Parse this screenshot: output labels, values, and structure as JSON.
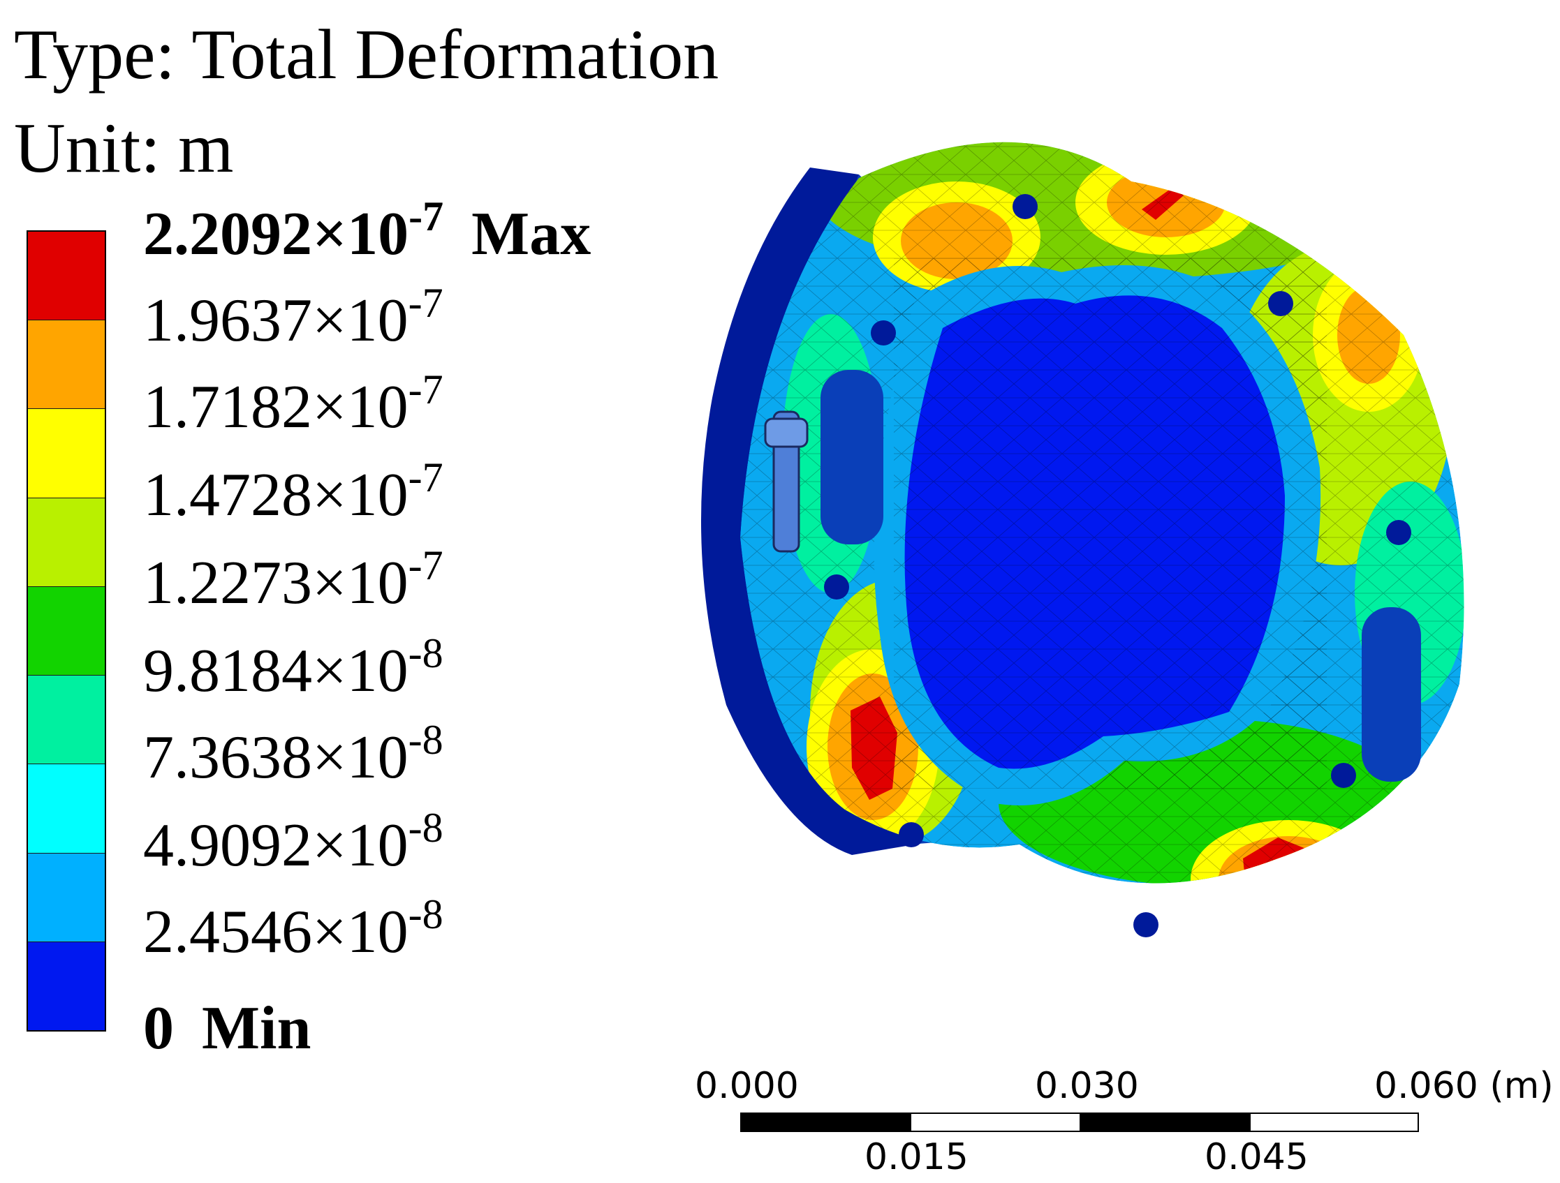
{
  "title": {
    "type_label": "Type: Total Deformation",
    "unit_label": "Unit: m"
  },
  "legend": {
    "colors": [
      "#e00000",
      "#ffa500",
      "#ffff00",
      "#b9f000",
      "#12d300",
      "#00f0a0",
      "#00ffff",
      "#00b0ff",
      "#0018f0"
    ],
    "levels": [
      {
        "mantissa": "2.2092",
        "times": "×10",
        "exponent": "-7",
        "tag": "Max"
      },
      {
        "mantissa": "1.9637",
        "times": "×10",
        "exponent": "-7",
        "tag": ""
      },
      {
        "mantissa": "1.7182",
        "times": "×10",
        "exponent": "-7",
        "tag": ""
      },
      {
        "mantissa": "1.4728",
        "times": "×10",
        "exponent": "-7",
        "tag": ""
      },
      {
        "mantissa": "1.2273",
        "times": "×10",
        "exponent": "-7",
        "tag": ""
      },
      {
        "mantissa": "9.8184",
        "times": "×10",
        "exponent": "-8",
        "tag": ""
      },
      {
        "mantissa": "7.3638",
        "times": "×10",
        "exponent": "-8",
        "tag": ""
      },
      {
        "mantissa": "4.9092",
        "times": "×10",
        "exponent": "-8",
        "tag": ""
      },
      {
        "mantissa": "2.4546",
        "times": "×10",
        "exponent": "-8",
        "tag": ""
      },
      {
        "mantissa": "0",
        "times": "",
        "exponent": "",
        "tag": "Min"
      }
    ]
  },
  "scale_bar": {
    "top_labels": [
      "0.000",
      "0.030",
      "0.060 (m)"
    ],
    "bottom_labels": [
      "0.015",
      "0.045"
    ]
  }
}
